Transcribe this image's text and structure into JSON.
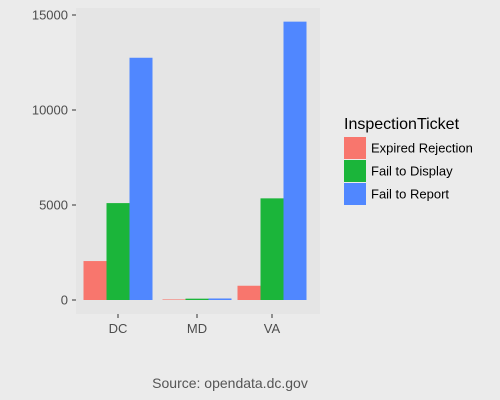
{
  "chart_data": {
    "type": "bar",
    "categories": [
      "DC",
      "MD",
      "VA"
    ],
    "series": [
      {
        "name": "Expired Rejection",
        "color": "#F8766D",
        "values": [
          2050,
          30,
          750
        ]
      },
      {
        "name": "Fail to Display",
        "color": "#1BB53A",
        "values": [
          5100,
          70,
          5350
        ]
      },
      {
        "name": "Fail to Report",
        "color": "#5087FF",
        "values": [
          12750,
          80,
          14650
        ]
      }
    ],
    "ylim": [
      0,
      15500
    ],
    "yticks": [
      0,
      5000,
      10000,
      15000
    ],
    "legend_title": "InspectionTicket",
    "legend_position": "right",
    "grid": false,
    "caption": "Source: opendata.dc.gov"
  }
}
